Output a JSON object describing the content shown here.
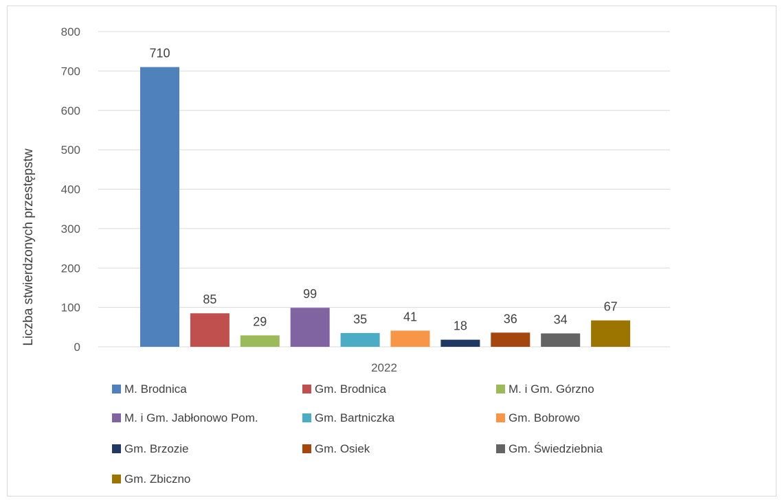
{
  "chart_data": {
    "type": "bar",
    "categories": [
      "2022"
    ],
    "ylabel": "Liczba stwierdzonych przestępstw",
    "ylim": [
      0,
      800
    ],
    "yticks": [
      0,
      100,
      200,
      300,
      400,
      500,
      600,
      700,
      800
    ],
    "grid": true,
    "legend_position": "bottom",
    "series": [
      {
        "name": "M. Brodnica",
        "values": [
          710
        ],
        "color": "#4f81bd"
      },
      {
        "name": "Gm. Brodnica",
        "values": [
          85
        ],
        "color": "#c0504d"
      },
      {
        "name": "M. i Gm. Górzno",
        "values": [
          29
        ],
        "color": "#9bbb59"
      },
      {
        "name": "M. i Gm. Jabłonowo Pom.",
        "values": [
          99
        ],
        "color": "#8064a2"
      },
      {
        "name": "Gm. Bartniczka",
        "values": [
          35
        ],
        "color": "#4bacc6"
      },
      {
        "name": "Gm. Bobrowo",
        "values": [
          41
        ],
        "color": "#f79646"
      },
      {
        "name": "Gm. Brzozie",
        "values": [
          18
        ],
        "color": "#1f3864"
      },
      {
        "name": "Gm. Osiek",
        "values": [
          36
        ],
        "color": "#a5460e"
      },
      {
        "name": "Gm. Świedziebnia",
        "values": [
          34
        ],
        "color": "#646464"
      },
      {
        "name": "Gm. Zbiczno",
        "values": [
          67
        ],
        "color": "#9c7400"
      }
    ]
  }
}
